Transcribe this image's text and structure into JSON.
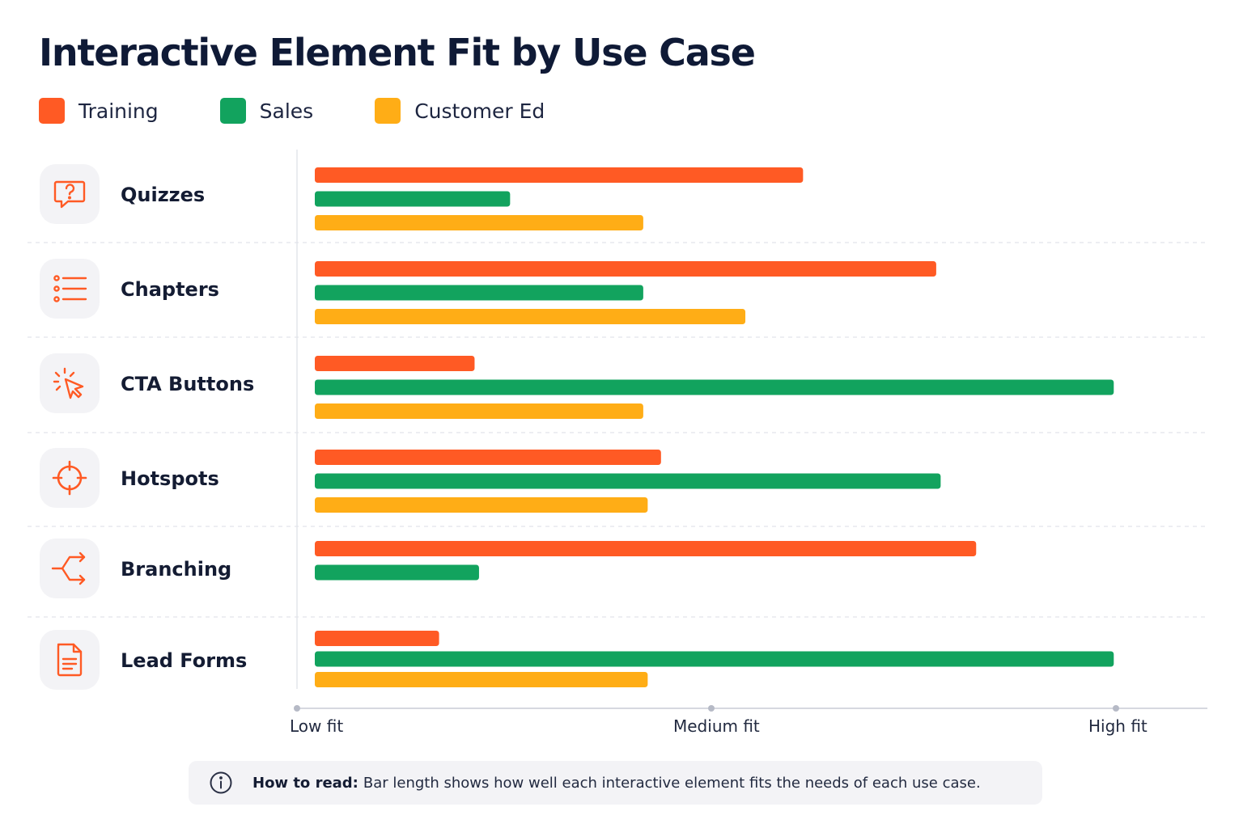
{
  "chart_data": {
    "type": "bar",
    "orientation": "horizontal",
    "title": "Interactive Element Fit by Use Case",
    "categories": [
      "Quizzes",
      "Chapters",
      "CTA Buttons",
      "Hotspots",
      "Branching",
      "Lead Forms"
    ],
    "category_icons": [
      "question-bubble-icon",
      "list-icon",
      "cursor-click-icon",
      "crosshair-icon",
      "branch-icon",
      "document-form-icon"
    ],
    "series": [
      {
        "name": "Training",
        "color": "#ff5a24",
        "values": [
          0.55,
          0.7,
          0.18,
          0.39,
          0.745,
          0.14
        ]
      },
      {
        "name": "Sales",
        "color": "#12a35e",
        "values": [
          0.22,
          0.37,
          0.9,
          0.705,
          0.185,
          0.9
        ]
      },
      {
        "name": "Customer Ed",
        "color": "#ffad16",
        "values": [
          0.37,
          0.485,
          0.37,
          0.375,
          null,
          0.375
        ]
      }
    ],
    "x_ticks": [
      "Low fit",
      "Medium fit",
      "High fit"
    ],
    "xlim": [
      0,
      1
    ],
    "legend_position": "top-left",
    "grid": false
  },
  "note": {
    "label": "How to read:",
    "text": "Bar length shows how well each interactive element fits the needs of each use case."
  }
}
